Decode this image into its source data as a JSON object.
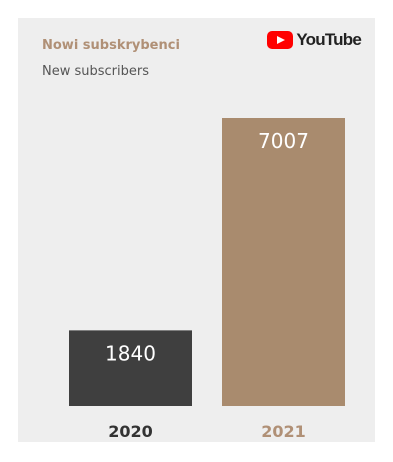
{
  "title": "Nowi subskrybenci",
  "subtitle": "New subscribers",
  "brand": {
    "logo_text": "YouTube",
    "logo_color": "#ff0000"
  },
  "chart_data": {
    "type": "bar",
    "title": "Nowi subskrybenci",
    "subtitle": "New subscribers",
    "categories": [
      "2020",
      "2021"
    ],
    "values": [
      1840,
      7007
    ],
    "colors": [
      "#3f3f3f",
      "#a98b6e"
    ],
    "category_label_colors": [
      "#333333",
      "#b09076"
    ],
    "xlabel": "",
    "ylabel": "",
    "ylim": [
      0,
      7007
    ],
    "grid": false,
    "legend": "none"
  }
}
